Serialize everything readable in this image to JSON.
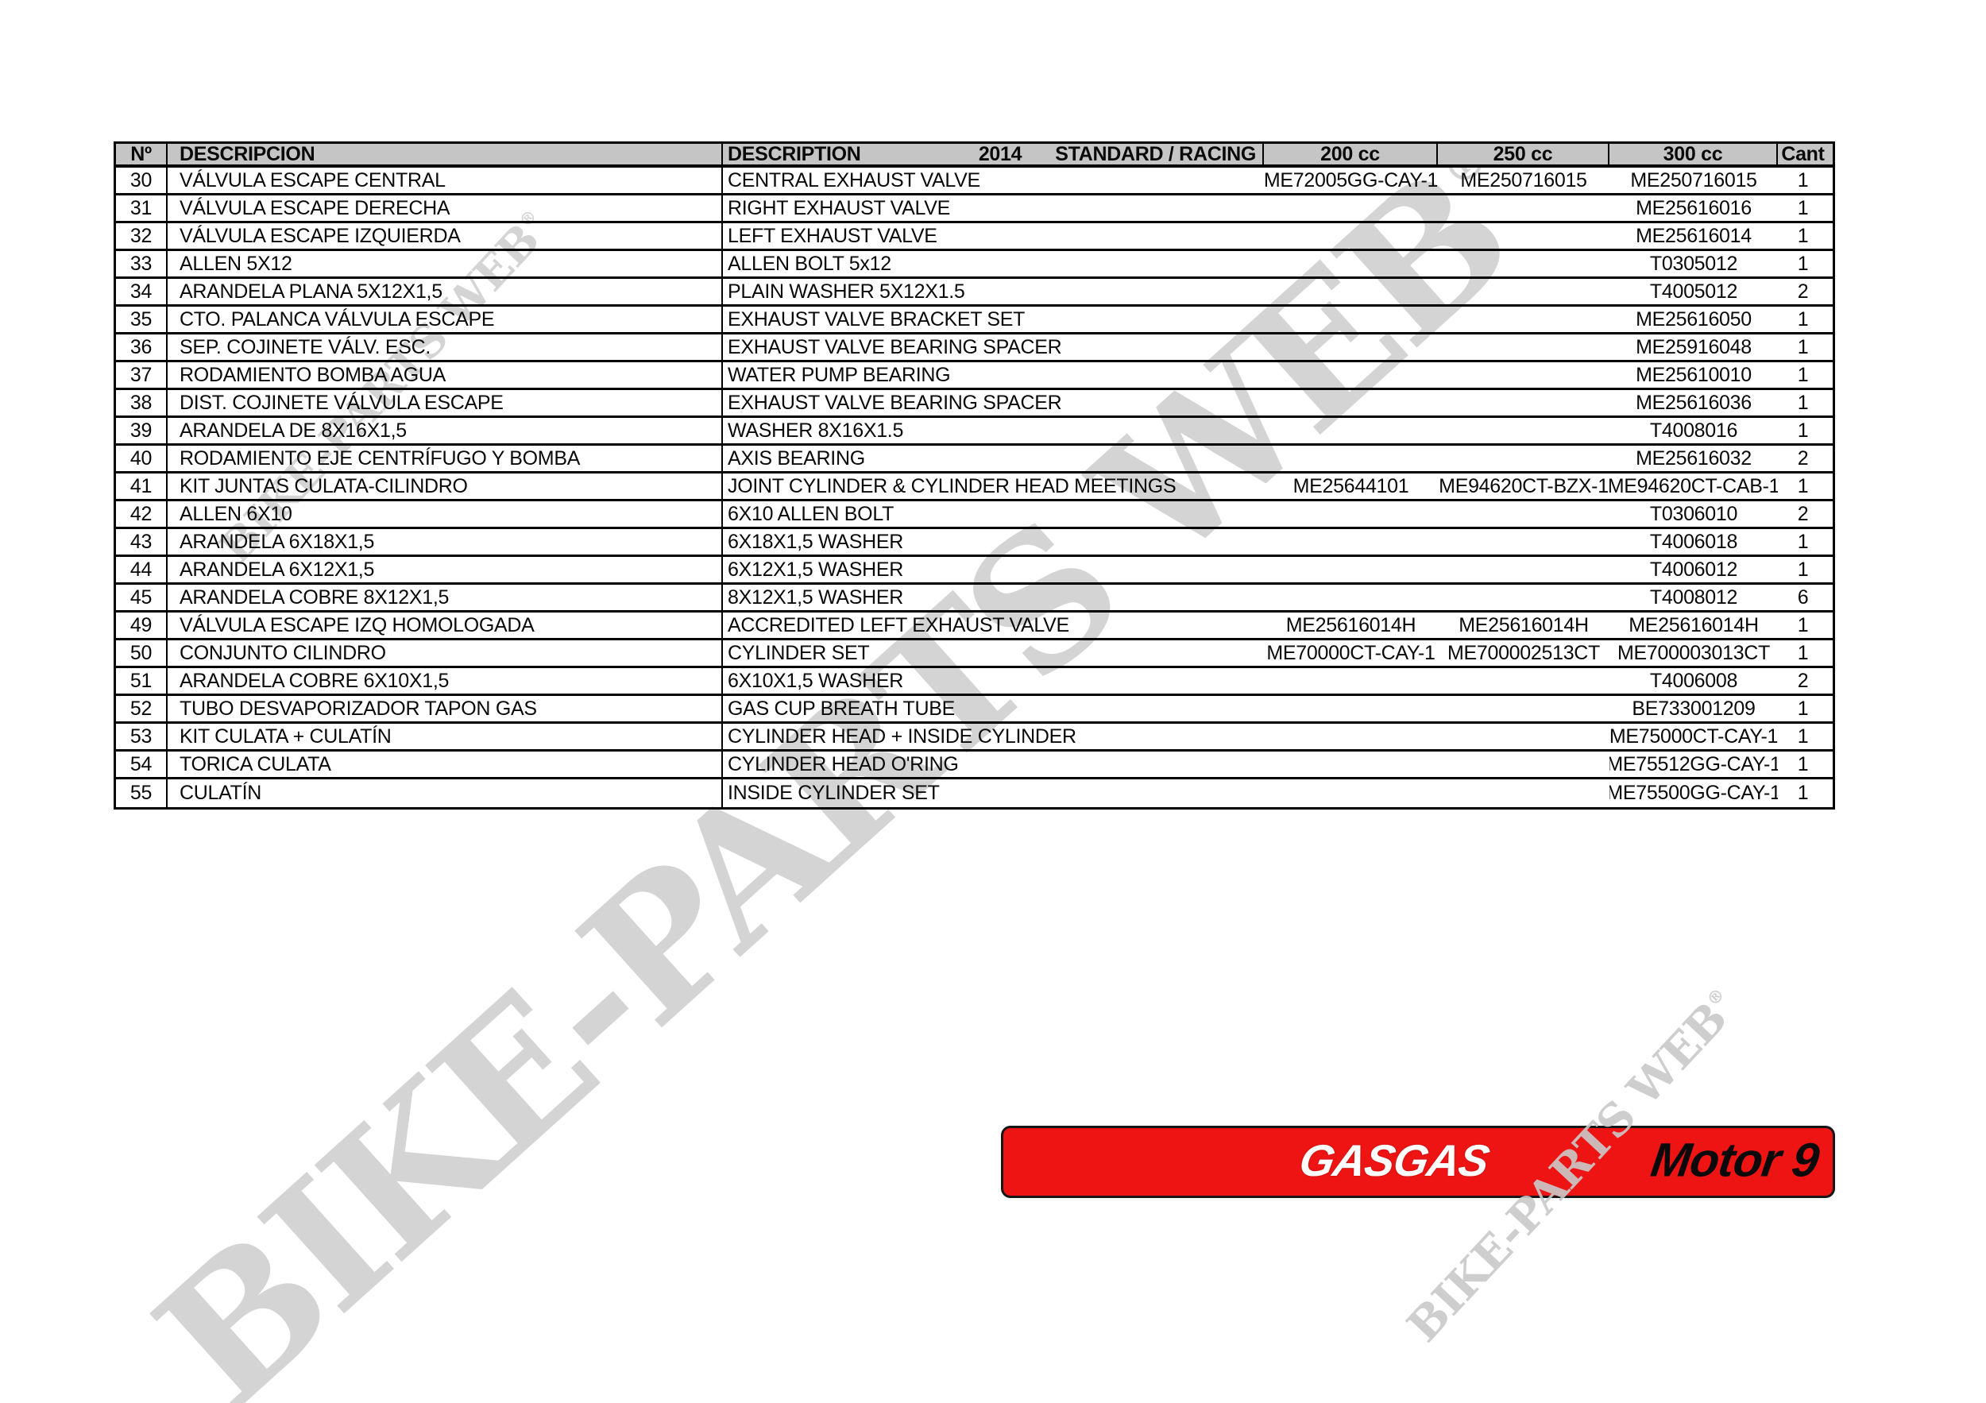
{
  "watermark": {
    "text": "BIKE-PARTS WEB",
    "reg": "®",
    "color": "#d4d4d4"
  },
  "banner": {
    "brand": "GASGAS",
    "model": "Motor 9",
    "red": "#ee1414"
  },
  "table": {
    "headers": {
      "num": "Nº",
      "desc_es": "DESCRIPCION",
      "desc_en": "DESCRIPTION",
      "year": "2014",
      "variant": "STANDARD / RACING",
      "cc200": "200 cc",
      "cc250": "250 cc",
      "cc300": "300 cc",
      "qty": "Cant"
    },
    "rows": [
      {
        "num": "30",
        "desc_es": "VÁLVULA ESCAPE CENTRAL",
        "desc_en": "CENTRAL EXHAUST VALVE",
        "cc200": "ME72005GG-CAY-1",
        "cc250": "ME250716015",
        "cc300": "ME250716015",
        "qty": "1"
      },
      {
        "num": "31",
        "desc_es": "VÁLVULA ESCAPE DERECHA",
        "desc_en": "RIGHT EXHAUST VALVE",
        "cc200": "",
        "cc250": "",
        "cc300": "ME25616016",
        "qty": "1"
      },
      {
        "num": "32",
        "desc_es": "VÁLVULA ESCAPE IZQUIERDA",
        "desc_en": "LEFT EXHAUST VALVE",
        "cc200": "",
        "cc250": "",
        "cc300": "ME25616014",
        "qty": "1"
      },
      {
        "num": "33",
        "desc_es": "ALLEN 5X12",
        "desc_en": "ALLEN BOLT 5x12",
        "cc200": "",
        "cc250": "",
        "cc300": "T0305012",
        "qty": "1"
      },
      {
        "num": "34",
        "desc_es": "ARANDELA PLANA 5X12X1,5",
        "desc_en": "PLAIN WASHER 5X12X1.5",
        "cc200": "",
        "cc250": "",
        "cc300": "T4005012",
        "qty": "2"
      },
      {
        "num": "35",
        "desc_es": "CTO. PALANCA VÁLVULA ESCAPE",
        "desc_en": "EXHAUST VALVE BRACKET SET",
        "cc200": "",
        "cc250": "",
        "cc300": "ME25616050",
        "qty": "1"
      },
      {
        "num": "36",
        "desc_es": "SEP. COJINETE VÁLV. ESC.",
        "desc_en": "EXHAUST VALVE BEARING SPACER",
        "cc200": "",
        "cc250": "",
        "cc300": "ME25916048",
        "qty": "1"
      },
      {
        "num": "37",
        "desc_es": "RODAMIENTO BOMBA AGUA",
        "desc_en": "WATER PUMP BEARING",
        "cc200": "",
        "cc250": "",
        "cc300": "ME25610010",
        "qty": "1"
      },
      {
        "num": "38",
        "desc_es": "DIST. COJINETE VÁLVULA ESCAPE",
        "desc_en": "EXHAUST VALVE BEARING SPACER",
        "cc200": "",
        "cc250": "",
        "cc300": "ME25616036",
        "qty": "1"
      },
      {
        "num": "39",
        "desc_es": "ARANDELA DE 8X16X1,5",
        "desc_en": "WASHER 8X16X1.5",
        "cc200": "",
        "cc250": "",
        "cc300": "T4008016",
        "qty": "1"
      },
      {
        "num": "40",
        "desc_es": "RODAMIENTO EJE CENTRÍFUGO Y BOMBA",
        "desc_en": "AXIS BEARING",
        "cc200": "",
        "cc250": "",
        "cc300": "ME25616032",
        "qty": "2"
      },
      {
        "num": "41",
        "desc_es": "KIT JUNTAS CULATA-CILINDRO",
        "desc_en": "JOINT CYLINDER & CYLINDER HEAD MEETINGS",
        "cc200": "ME25644101",
        "cc250": "ME94620CT-BZX-1",
        "cc300": "ME94620CT-CAB-1",
        "qty": "1"
      },
      {
        "num": "42",
        "desc_es": "ALLEN 6X10",
        "desc_en": "6X10 ALLEN BOLT",
        "cc200": "",
        "cc250": "",
        "cc300": "T0306010",
        "qty": "2"
      },
      {
        "num": "43",
        "desc_es": "ARANDELA 6X18X1,5",
        "desc_en": "6X18X1,5 WASHER",
        "cc200": "",
        "cc250": "",
        "cc300": "T4006018",
        "qty": "1"
      },
      {
        "num": "44",
        "desc_es": "ARANDELA 6X12X1,5",
        "desc_en": "6X12X1,5 WASHER",
        "cc200": "",
        "cc250": "",
        "cc300": "T4006012",
        "qty": "1"
      },
      {
        "num": "45",
        "desc_es": "ARANDELA COBRE 8X12X1,5",
        "desc_en": "8X12X1,5 WASHER",
        "cc200": "",
        "cc250": "",
        "cc300": "T4008012",
        "qty": "6"
      },
      {
        "num": "49",
        "desc_es": "VÁLVULA ESCAPE IZQ HOMOLOGADA",
        "desc_en": "ACCREDITED LEFT EXHAUST VALVE",
        "cc200": "ME25616014H",
        "cc250": "ME25616014H",
        "cc300": "ME25616014H",
        "qty": "1"
      },
      {
        "num": "50",
        "desc_es": "CONJUNTO CILINDRO",
        "desc_en": "CYLINDER SET",
        "cc200": "ME70000CT-CAY-1",
        "cc250": "ME700002513CT",
        "cc300": "ME700003013CT",
        "qty": "1"
      },
      {
        "num": "51",
        "desc_es": "ARANDELA COBRE 6X10X1,5",
        "desc_en": "6X10X1,5 WASHER",
        "cc200": "",
        "cc250": "",
        "cc300": "T4006008",
        "qty": "2"
      },
      {
        "num": "52",
        "desc_es": "TUBO DESVAPORIZADOR TAPON GAS",
        "desc_en": "GAS CUP BREATH TUBE",
        "cc200": "",
        "cc250": "",
        "cc300": "BE733001209",
        "qty": "1"
      },
      {
        "num": "53",
        "desc_es": "KIT CULATA + CULATÍN",
        "desc_en": "CYLINDER HEAD + INSIDE CYLINDER",
        "cc200": "",
        "cc250": "",
        "cc300": "ME75000CT-CAY-1",
        "qty": "1"
      },
      {
        "num": "54",
        "desc_es": "TORICA CULATA",
        "desc_en": "CYLINDER HEAD O'RING",
        "cc200": "",
        "cc250": "",
        "cc300": "ME75512GG-CAY-1",
        "qty": "1"
      },
      {
        "num": "55",
        "desc_es": "CULATÍN",
        "desc_en": "INSIDE CYLINDER SET",
        "cc200": "",
        "cc250": "",
        "cc300": "ME75500GG-CAY-1",
        "qty": "1"
      }
    ]
  }
}
